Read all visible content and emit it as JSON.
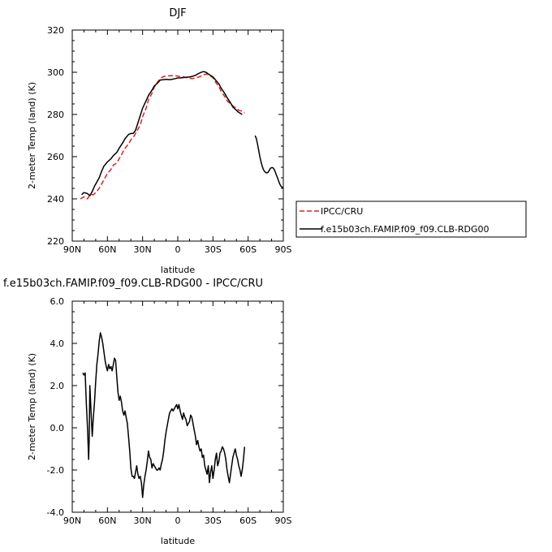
{
  "chart_data": [
    {
      "type": "line",
      "title": "DJF",
      "xlabel": "latitude",
      "ylabel": "2-meter Temp (land) (K)",
      "xlim": [
        90,
        -90
      ],
      "ylim": [
        220,
        320
      ],
      "x_ticks": [
        90,
        60,
        30,
        0,
        -30,
        -60,
        -90
      ],
      "x_tick_labels": [
        "90N",
        "60N",
        "30N",
        "0",
        "30S",
        "60S",
        "90S"
      ],
      "y_ticks": [
        220,
        240,
        260,
        280,
        300,
        320
      ],
      "y_tick_labels": [
        "220",
        "240",
        "260",
        "280",
        "300",
        "320"
      ],
      "legend_position": "right",
      "series": [
        {
          "name": "IPCC/CRU",
          "color": "#e02020",
          "dash": "dashed",
          "x": [
            83,
            80,
            77,
            75,
            72,
            70,
            67,
            65,
            62,
            60,
            57,
            55,
            52,
            50,
            47,
            45,
            42,
            40,
            37,
            35,
            32,
            30,
            27,
            25,
            22,
            20,
            17,
            15,
            12,
            10,
            7,
            5,
            2,
            0,
            -2,
            -5,
            -7,
            -10,
            -12,
            -15,
            -17,
            -20,
            -22,
            -25,
            -27,
            -30,
            -32,
            -35,
            -37,
            -40,
            -42,
            -45,
            -47,
            -50,
            -52,
            -55,
            -57
          ],
          "y": [
            240,
            241,
            240,
            242,
            242,
            243,
            245,
            247,
            250,
            252,
            254,
            256,
            257,
            259,
            262,
            264,
            266,
            268,
            270,
            272,
            275,
            279,
            283,
            287,
            290,
            293,
            295.5,
            297,
            298,
            298.2,
            298.3,
            298.4,
            298.3,
            298.2,
            298,
            297.8,
            297.5,
            297.2,
            297,
            297.2,
            297.6,
            298.2,
            298.8,
            299.2,
            298.6,
            297.4,
            295.5,
            293.2,
            291,
            288.5,
            286.5,
            285,
            284,
            283,
            282,
            281.5,
            280.8
          ]
        },
        {
          "name": "f.e15b03ch.FAMIP.f09_f09.CLB-RDG00",
          "color": "#000000",
          "dash": "solid",
          "segments": [
            {
              "x": [
                82,
                80,
                77,
                75,
                73,
                71,
                69,
                67,
                65,
                63,
                60,
                57,
                55,
                52,
                50,
                47,
                45,
                42,
                40,
                38,
                36,
                34,
                32,
                30,
                27,
                25,
                22,
                20,
                17,
                15,
                12,
                10,
                7,
                5,
                2,
                0,
                -2,
                -5,
                -7,
                -10,
                -12,
                -15,
                -17,
                -20,
                -22,
                -24,
                -26,
                -28,
                -30,
                -32,
                -35,
                -37,
                -40,
                -42,
                -45,
                -47,
                -50,
                -52,
                -55
              ],
              "y": [
                242,
                243,
                242.5,
                241.5,
                243.5,
                246,
                248,
                250,
                253,
                255.5,
                257.5,
                259,
                260.5,
                262,
                264,
                266.5,
                268.5,
                270.5,
                271,
                271,
                272.5,
                276,
                279.5,
                283,
                286.5,
                289,
                291.5,
                293.5,
                295,
                296.3,
                296.5,
                296.6,
                296.5,
                296.6,
                297,
                297.3,
                297.3,
                297.5,
                297.6,
                297.8,
                298,
                298.5,
                299.2,
                300,
                300.3,
                300,
                299.2,
                298.5,
                297.8,
                296.5,
                294.5,
                292.5,
                290,
                288,
                285.5,
                283.5,
                282,
                281,
                280
              ]
            },
            {
              "x": [
                -66,
                -67,
                -68,
                -69,
                -70,
                -71,
                -72,
                -73,
                -74,
                -75,
                -76,
                -77,
                -78,
                -79,
                -80,
                -81,
                -82,
                -83,
                -84,
                -85,
                -86,
                -87,
                -88,
                -89,
                -90
              ],
              "y": [
                270,
                268.5,
                266,
                263,
                260,
                257.5,
                255.5,
                254,
                253,
                252.5,
                252.3,
                252.6,
                253.5,
                254.5,
                254.8,
                254.8,
                254.2,
                253,
                251.5,
                250,
                248.5,
                247,
                246,
                245.5,
                245
              ]
            }
          ]
        }
      ]
    },
    {
      "type": "line",
      "title": "f.e15b03ch.FAMIP.f09_f09.CLB-RDG00 - IPCC/CRU",
      "xlabel": "latitude",
      "ylabel": "2-meter Temp (land) (K)",
      "xlim": [
        90,
        -90
      ],
      "ylim": [
        -4,
        6
      ],
      "x_ticks": [
        90,
        60,
        30,
        0,
        -30,
        -60,
        -90
      ],
      "x_tick_labels": [
        "90N",
        "60N",
        "30N",
        "0",
        "30S",
        "60S",
        "90S"
      ],
      "y_ticks": [
        -4,
        -2,
        0,
        2,
        4,
        6
      ],
      "y_tick_labels": [
        "-4.0",
        "-2.0",
        "0.0",
        "2.0",
        "4.0",
        "6.0"
      ],
      "series": [
        {
          "color": "#000000",
          "x": [
            81,
            80,
            79,
            78,
            77,
            76,
            75.5,
            75,
            74,
            73,
            72,
            71,
            70,
            69,
            68,
            67,
            66,
            65,
            64,
            63,
            62,
            61,
            60,
            59,
            58,
            57,
            56,
            55,
            54,
            53,
            52,
            51,
            50,
            49,
            48,
            47,
            46,
            45,
            44,
            43,
            42,
            41,
            40,
            39,
            38,
            37,
            36,
            35,
            34,
            33,
            32,
            31,
            30,
            29,
            28,
            27,
            26,
            25,
            24,
            23,
            22,
            21,
            20,
            19,
            18,
            17,
            16,
            15,
            14,
            13,
            12,
            11,
            10,
            9,
            8,
            7,
            6,
            5,
            4,
            3,
            2,
            1,
            0,
            -1,
            -2,
            -3,
            -4,
            -5,
            -6,
            -7,
            -8,
            -9,
            -10,
            -11,
            -12,
            -13,
            -14,
            -15,
            -16,
            -17,
            -18,
            -19,
            -20,
            -21,
            -22,
            -23,
            -24,
            -25,
            -26,
            -27,
            -28,
            -29,
            -30,
            -31,
            -32,
            -33,
            -34,
            -35,
            -36,
            -37,
            -38,
            -39,
            -40,
            -41,
            -42,
            -43,
            -44,
            -45,
            -46,
            -47,
            -48,
            -49,
            -50,
            -51,
            -52,
            -53,
            -54,
            -55,
            -56,
            -57
          ],
          "y": [
            2.6,
            2.5,
            2.6,
            1.2,
            0.0,
            -1.5,
            -0.5,
            2.0,
            0.8,
            -0.4,
            0.5,
            1.2,
            2.2,
            3.0,
            3.5,
            4.1,
            4.5,
            4.3,
            4.0,
            3.6,
            3.2,
            2.9,
            2.7,
            3.0,
            2.8,
            2.9,
            2.7,
            3.0,
            3.3,
            3.2,
            2.4,
            1.7,
            1.3,
            1.5,
            1.2,
            0.8,
            0.6,
            0.8,
            0.5,
            0.2,
            -0.4,
            -1.1,
            -1.9,
            -2.3,
            -2.3,
            -2.4,
            -2.1,
            -1.8,
            -2.2,
            -2.4,
            -2.3,
            -2.6,
            -3.3,
            -2.7,
            -2.3,
            -2.0,
            -1.6,
            -1.1,
            -1.4,
            -1.5,
            -1.9,
            -1.7,
            -1.8,
            -1.9,
            -2.0,
            -2.0,
            -1.9,
            -2.0,
            -1.7,
            -1.5,
            -1.1,
            -0.6,
            -0.2,
            0.1,
            0.4,
            0.7,
            0.8,
            0.9,
            0.8,
            0.9,
            1.0,
            1.1,
            0.9,
            1.1,
            0.8,
            0.6,
            0.4,
            0.7,
            0.5,
            0.4,
            0.1,
            0.2,
            0.3,
            0.6,
            0.5,
            0.2,
            -0.1,
            -0.4,
            -0.8,
            -0.6,
            -0.9,
            -1.1,
            -1.0,
            -1.4,
            -1.3,
            -1.8,
            -2.0,
            -2.2,
            -1.8,
            -2.6,
            -2.1,
            -1.8,
            -2.4,
            -2.0,
            -1.5,
            -1.2,
            -1.8,
            -1.6,
            -1.2,
            -1.1,
            -0.9,
            -1.0,
            -1.2,
            -1.5,
            -2.0,
            -2.3,
            -2.6,
            -2.2,
            -1.8,
            -1.4,
            -1.2,
            -1.0,
            -1.3,
            -1.5,
            -1.8,
            -2.0,
            -2.3,
            -2.0,
            -1.5,
            -0.9
          ]
        }
      ]
    }
  ]
}
